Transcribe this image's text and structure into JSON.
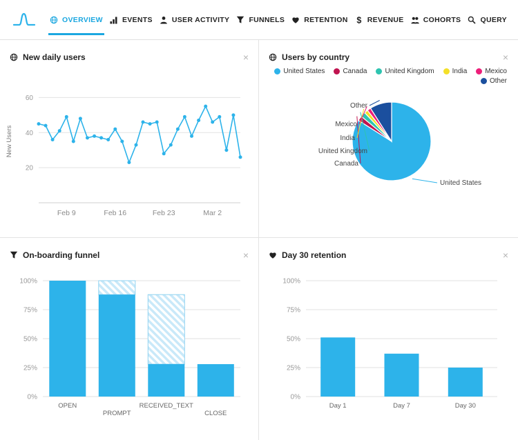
{
  "ui": {
    "close_glyph": "×"
  },
  "colors": {
    "accent": "#1ba7e0",
    "chart_blue": "#2db3ea",
    "grid_line": "#e2e2e2",
    "tick_text": "#999999",
    "nav_text": "#222222"
  },
  "nav": {
    "tabs": [
      {
        "label": "OVERVIEW",
        "icon": "globe",
        "active": true
      },
      {
        "label": "EVENTS",
        "icon": "bar-chart",
        "active": false
      },
      {
        "label": "USER ACTIVITY",
        "icon": "user",
        "active": false
      },
      {
        "label": "FUNNELS",
        "icon": "funnel",
        "active": false
      },
      {
        "label": "RETENTION",
        "icon": "heart",
        "active": false
      },
      {
        "label": "REVENUE",
        "icon": "dollar",
        "active": false
      },
      {
        "label": "COHORTS",
        "icon": "cohorts",
        "active": false
      },
      {
        "label": "QUERY",
        "icon": "search",
        "active": false
      }
    ]
  },
  "panels": [
    {
      "title": "New daily users",
      "icon": "globe"
    },
    {
      "title": "Users by country",
      "icon": "globe"
    },
    {
      "title": "On-boarding funnel",
      "icon": "funnel"
    },
    {
      "title": "Day 30 retention",
      "icon": "heart"
    }
  ],
  "chart_data": [
    {
      "id": "new-daily-users",
      "type": "line",
      "title": "New daily users",
      "ylabel": "New Users",
      "color": "#2db3ea",
      "ylim": [
        0,
        70
      ],
      "yticks": [
        20,
        40,
        60
      ],
      "x_ticks": [
        {
          "index": 4,
          "label": "Feb 9"
        },
        {
          "index": 11,
          "label": "Feb 16"
        },
        {
          "index": 18,
          "label": "Feb 23"
        },
        {
          "index": 25,
          "label": "Mar 2"
        }
      ],
      "values": [
        45,
        44,
        36,
        41,
        49,
        35,
        48,
        37,
        38,
        37,
        36,
        42,
        35,
        23,
        33,
        46,
        45,
        46,
        28,
        33,
        42,
        49,
        38,
        47,
        55,
        46,
        49,
        30,
        50,
        26
      ]
    },
    {
      "id": "users-by-country",
      "type": "pie",
      "title": "Users by country",
      "slices": [
        {
          "label": "United States",
          "value": 84,
          "color": "#2db3ea"
        },
        {
          "label": "Canada",
          "value": 2,
          "color": "#c01450"
        },
        {
          "label": "United Kingdom",
          "value": 2,
          "color": "#2ec4b0"
        },
        {
          "label": "India",
          "value": 1.5,
          "color": "#f4e028"
        },
        {
          "label": "Mexico",
          "value": 1.5,
          "color": "#ed1e79"
        },
        {
          "label": "Other",
          "value": 9,
          "color": "#1b4f9e"
        }
      ]
    },
    {
      "id": "onboarding-funnel",
      "type": "bar",
      "title": "On-boarding funnel",
      "color": "#2db3ea",
      "categories": [
        "OPEN",
        "PROMPT",
        "RECEIVED_TEXT",
        "CLOSE"
      ],
      "values": [
        100,
        88,
        28,
        28
      ],
      "hatch_to": [
        null,
        100,
        88,
        null
      ],
      "yticks": [
        0,
        25,
        50,
        75,
        100
      ],
      "ylim": [
        0,
        100
      ]
    },
    {
      "id": "day30-retention",
      "type": "bar",
      "title": "Day 30 retention",
      "color": "#2db3ea",
      "categories": [
        "Day 1",
        "Day 7",
        "Day 30"
      ],
      "values": [
        51,
        37,
        25
      ],
      "hatch_to": null,
      "yticks": [
        0,
        25,
        50,
        75,
        100
      ],
      "ylim": [
        0,
        100
      ]
    }
  ]
}
